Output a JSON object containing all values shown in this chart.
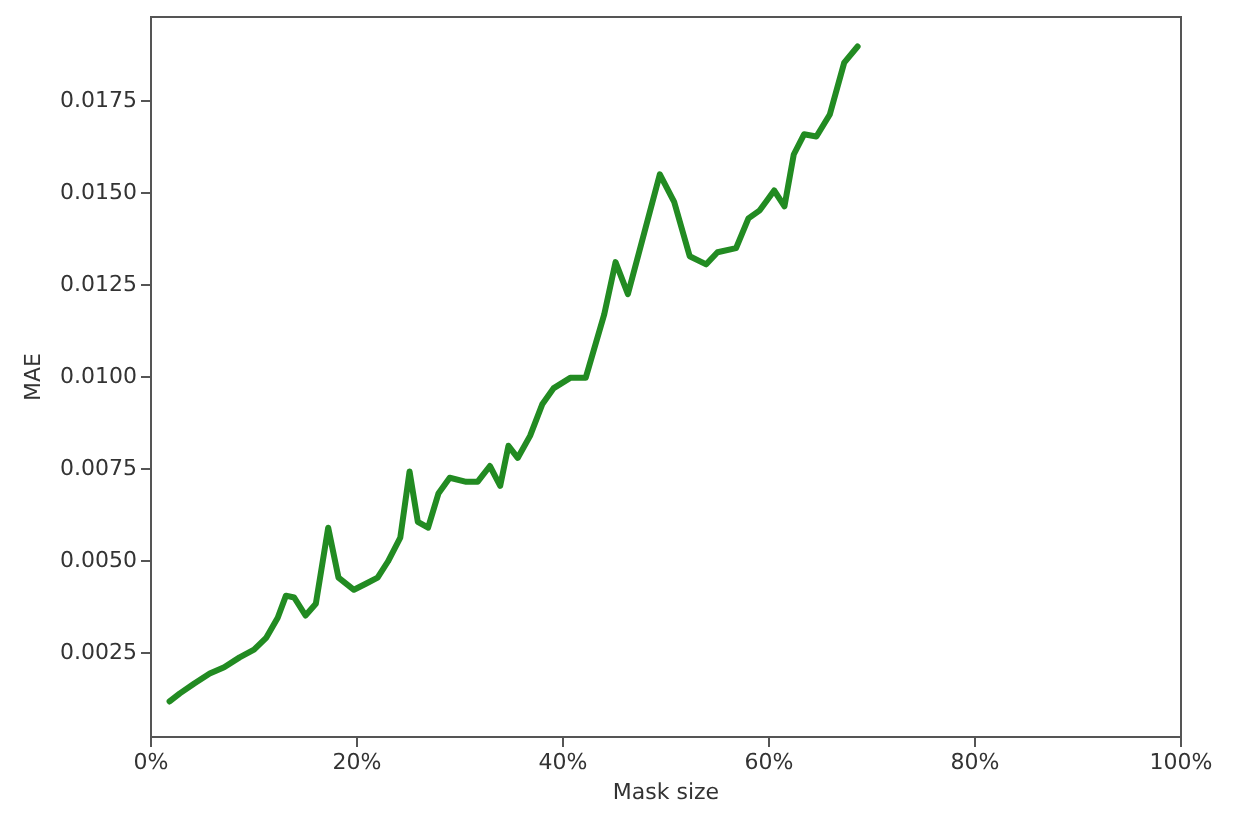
{
  "chart_data": {
    "type": "line",
    "xlabel": "Mask size",
    "ylabel": "MAE",
    "xlim": [
      0,
      100
    ],
    "ylim": [
      0.0002,
      0.0198
    ],
    "xticks": [
      {
        "value": 0,
        "label": "0%"
      },
      {
        "value": 20,
        "label": "20%"
      },
      {
        "value": 40,
        "label": "40%"
      },
      {
        "value": 60,
        "label": "60%"
      },
      {
        "value": 80,
        "label": "80%"
      },
      {
        "value": 100,
        "label": "100%"
      }
    ],
    "yticks": [
      {
        "value": 0.0025,
        "label": "0.0025"
      },
      {
        "value": 0.005,
        "label": "0.0050"
      },
      {
        "value": 0.0075,
        "label": "0.0075"
      },
      {
        "value": 0.01,
        "label": "0.0100"
      },
      {
        "value": 0.0125,
        "label": "0.0125"
      },
      {
        "value": 0.015,
        "label": "0.0150"
      },
      {
        "value": 0.0175,
        "label": "0.0175"
      }
    ],
    "grid": false,
    "legend": false,
    "series": [
      {
        "color": "#228b22",
        "x": [
          1.9,
          2.9,
          4.3,
          5.8,
          7.2,
          8.7,
          10.1,
          11.3,
          12.4,
          13.2,
          14,
          15.1,
          16.1,
          17.3,
          18.3,
          19.8,
          21,
          22.1,
          23.1,
          24.3,
          25.2,
          26,
          27,
          28,
          29.1,
          30.7,
          31.8,
          33,
          34,
          34.8,
          35.7,
          36.9,
          38.1,
          39.2,
          40.8,
          42.3,
          44.1,
          45.2,
          46.4,
          49.5,
          50.9,
          52.4,
          54,
          55.1,
          56.9,
          58.1,
          59.2,
          60.6,
          61.6,
          62.5,
          63.5,
          64.7,
          66,
          67.4,
          68.7
        ],
        "values": [
          0.00114,
          0.00136,
          0.00163,
          0.0019,
          0.00207,
          0.00234,
          0.00255,
          0.00288,
          0.00342,
          0.00402,
          0.00397,
          0.00348,
          0.0038,
          0.00587,
          0.00451,
          0.00418,
          0.00435,
          0.00451,
          0.00495,
          0.0056,
          0.0074,
          0.00603,
          0.00587,
          0.0068,
          0.00723,
          0.00712,
          0.00712,
          0.00755,
          0.00701,
          0.0081,
          0.00777,
          0.00837,
          0.00924,
          0.00967,
          0.00995,
          0.00995,
          0.01168,
          0.0131,
          0.01223,
          0.01549,
          0.01473,
          0.01326,
          0.01304,
          0.01337,
          0.01348,
          0.01429,
          0.01451,
          0.01505,
          0.01462,
          0.01603,
          0.01658,
          0.01652,
          0.01712,
          0.01853,
          0.01897
        ]
      }
    ]
  }
}
